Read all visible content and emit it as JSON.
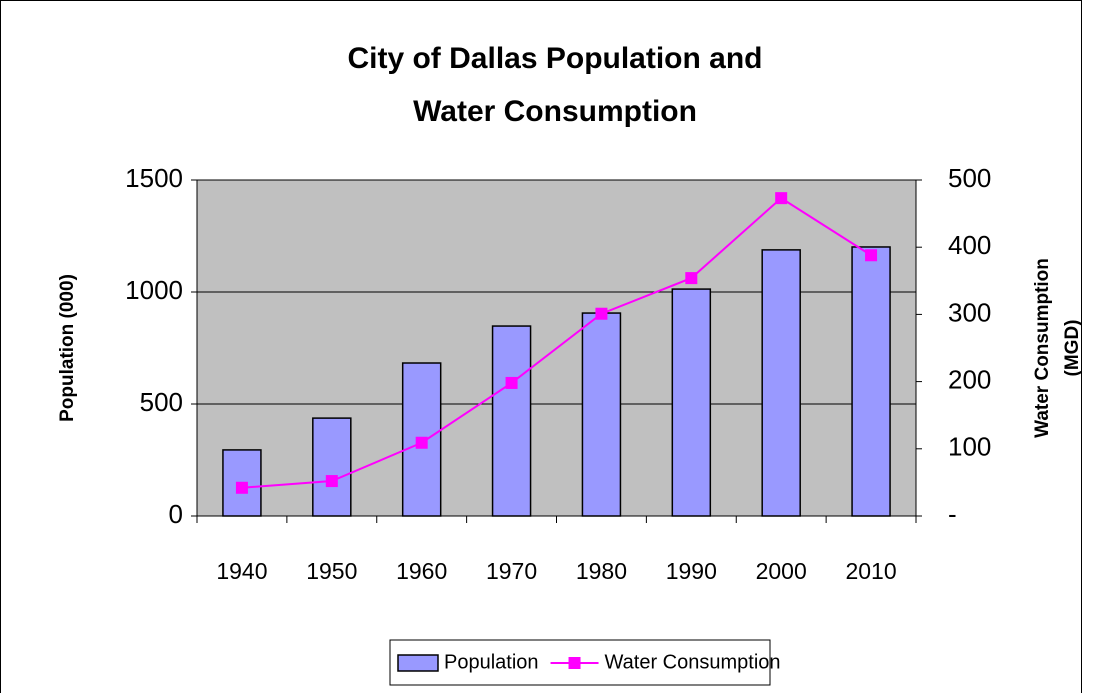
{
  "chart_data": {
    "type": "bar-line",
    "title": [
      "City of Dallas Population and",
      "Water Consumption"
    ],
    "ylabel": "Population (000)",
    "y2label": [
      "Water Consumption",
      "(MGD)"
    ],
    "categories": [
      "1940",
      "1950",
      "1960",
      "1970",
      "1980",
      "1990",
      "2000",
      "2010"
    ],
    "series": [
      {
        "name": "Population",
        "type": "bar",
        "color": "#9999ff",
        "values": [
          295,
          437,
          683,
          848,
          906,
          1013,
          1188,
          1201
        ]
      },
      {
        "name": "Water Consumption",
        "type": "line",
        "axis": "y2",
        "color": "#ff00ff",
        "values": [
          42,
          52,
          109,
          198,
          301,
          354,
          473,
          388
        ]
      }
    ],
    "ylim": [
      0,
      1500
    ],
    "yticks": [
      0,
      500,
      1000,
      1500
    ],
    "y2lim": [
      0,
      500
    ],
    "y2ticks": [
      {
        "value": 0,
        "label": "-"
      },
      100,
      200,
      300,
      400,
      500
    ],
    "grid": true,
    "legend": "bottom"
  }
}
